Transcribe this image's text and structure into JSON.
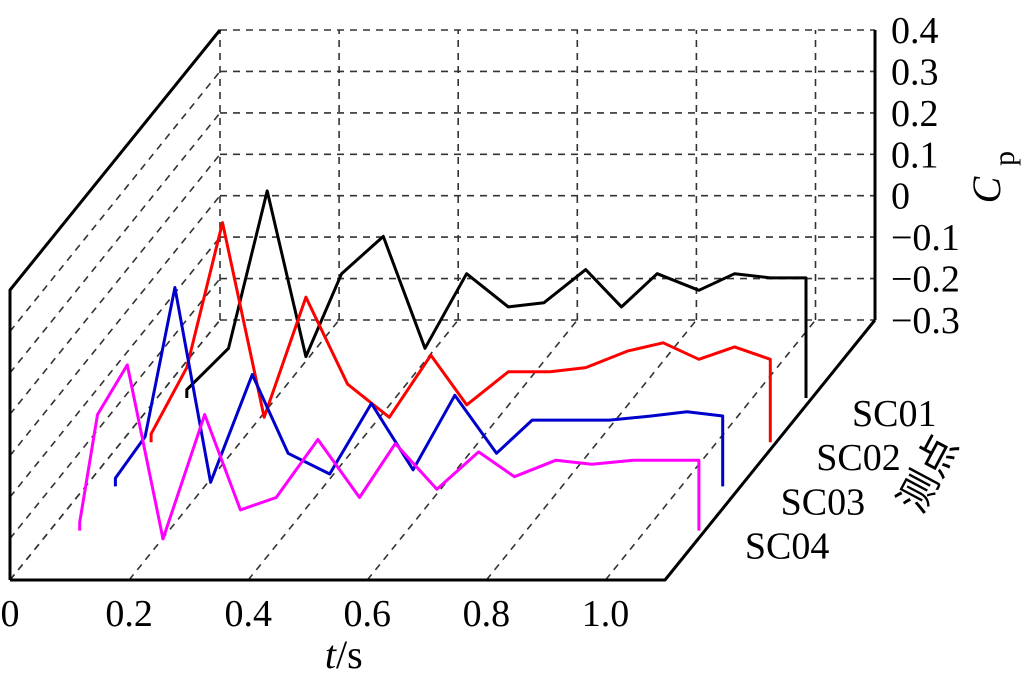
{
  "chart_data": {
    "type": "line",
    "title": "",
    "xlabel_var": "t",
    "xlabel_unit": "/s",
    "zlabel_main": "C",
    "zlabel_sub": "p",
    "ylabel": "测点",
    "xlim": [
      0,
      1.1
    ],
    "zlim": [
      -0.3,
      0.4
    ],
    "grid": true,
    "x_ticks": [
      "0",
      "0.2",
      "0.4",
      "0.6",
      "0.8",
      "1.0"
    ],
    "x_tick_values": [
      0,
      0.2,
      0.4,
      0.6,
      0.8,
      1.0
    ],
    "z_ticks": [
      "0.4",
      "0.3",
      "0.2",
      "0.1",
      "0",
      "−0.1",
      "−0.2",
      "−0.3"
    ],
    "z_tick_values": [
      0.4,
      0.3,
      0.2,
      0.1,
      0,
      -0.1,
      -0.2,
      -0.3
    ],
    "categories": [
      "SC01",
      "SC02",
      "SC03",
      "SC04"
    ],
    "series": [
      {
        "name": "SC01",
        "color": "#000000",
        "x": [
          0.05,
          0.12,
          0.185,
          0.25,
          0.31,
          0.38,
          0.45,
          0.52,
          0.59,
          0.65,
          0.72,
          0.78,
          0.84,
          0.91,
          0.97,
          1.03,
          1.09
        ],
        "y": [
          -0.28,
          -0.18,
          0.2,
          -0.2,
          0.0,
          0.09,
          -0.18,
          0.0,
          -0.08,
          -0.07,
          0.01,
          -0.08,
          0.0,
          -0.04,
          0.0,
          -0.01,
          -0.01
        ]
      },
      {
        "name": "SC02",
        "color": "#ff0000",
        "x": [
          0.05,
          0.11,
          0.17,
          0.24,
          0.31,
          0.38,
          0.45,
          0.52,
          0.58,
          0.65,
          0.72,
          0.78,
          0.85,
          0.91,
          0.97,
          1.03,
          1.09
        ],
        "y": [
          -0.28,
          -0.12,
          0.23,
          -0.24,
          0.05,
          -0.16,
          -0.24,
          -0.09,
          -0.21,
          -0.13,
          -0.13,
          -0.12,
          -0.08,
          -0.06,
          -0.1,
          -0.07,
          -0.1
        ]
      },
      {
        "name": "SC03",
        "color": "#0000cc",
        "x": [
          0.05,
          0.1,
          0.15,
          0.21,
          0.28,
          0.34,
          0.41,
          0.48,
          0.55,
          0.62,
          0.69,
          0.75,
          0.82,
          0.88,
          0.95,
          1.01,
          1.07
        ],
        "y": [
          -0.28,
          -0.18,
          0.18,
          -0.29,
          -0.03,
          -0.22,
          -0.27,
          -0.1,
          -0.26,
          -0.08,
          -0.22,
          -0.14,
          -0.14,
          -0.14,
          -0.13,
          -0.12,
          -0.13
        ]
      },
      {
        "name": "SC04",
        "color": "#ff00ff",
        "x": [
          0.05,
          0.08,
          0.13,
          0.19,
          0.26,
          0.32,
          0.38,
          0.45,
          0.52,
          0.58,
          0.65,
          0.72,
          0.78,
          0.85,
          0.91,
          0.98,
          1.04,
          1.09
        ],
        "y": [
          -0.28,
          -0.02,
          0.1,
          -0.32,
          -0.02,
          -0.25,
          -0.22,
          -0.08,
          -0.22,
          -0.09,
          -0.2,
          -0.11,
          -0.17,
          -0.13,
          -0.14,
          -0.13,
          -0.13,
          -0.13
        ]
      }
    ]
  }
}
